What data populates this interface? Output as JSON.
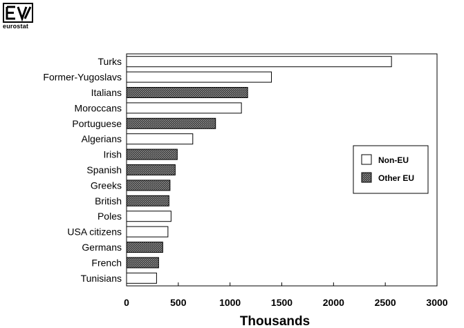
{
  "logo": {
    "text": "eurostat"
  },
  "chart_data": {
    "type": "bar",
    "orientation": "horizontal",
    "categories": [
      "Turks",
      "Former-Yugoslavs",
      "Italians",
      "Moroccans",
      "Portuguese",
      "Algerians",
      "Irish",
      "Spanish",
      "Greeks",
      "British",
      "Poles",
      "USA citizens",
      "Germans",
      "French",
      "Tunisians"
    ],
    "values": [
      2560,
      1400,
      1170,
      1110,
      860,
      640,
      490,
      470,
      420,
      410,
      430,
      400,
      350,
      310,
      290
    ],
    "groups": [
      "Non-EU",
      "Non-EU",
      "Other EU",
      "Non-EU",
      "Other EU",
      "Non-EU",
      "Other EU",
      "Other EU",
      "Other EU",
      "Other EU",
      "Non-EU",
      "Non-EU",
      "Other EU",
      "Other EU",
      "Non-EU"
    ],
    "xlabel": "Thousands",
    "xlim": [
      0,
      3000
    ],
    "xticks": [
      0,
      500,
      1000,
      1500,
      2000,
      2500,
      3000
    ],
    "legend": {
      "placement": "right",
      "entries": [
        {
          "name": "Non-EU",
          "color": "#ffffff"
        },
        {
          "name": "Other EU",
          "color": "#555555"
        }
      ]
    },
    "grid": false
  }
}
